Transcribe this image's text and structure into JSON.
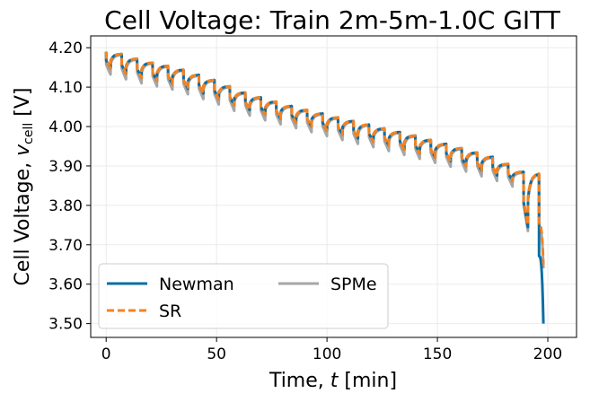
{
  "chart_data": {
    "type": "line",
    "title": "Cell Voltage: Train 2m-5m-1.0C GITT",
    "xlabel_prefix": "Time, ",
    "xlabel_var": "t",
    "xlabel_unit": " [min]",
    "ylabel_prefix": "Cell Voltage, ",
    "ylabel_var": "v",
    "ylabel_sub": "cell",
    "ylabel_unit": " [V]",
    "xlim": [
      -7,
      213
    ],
    "ylim": [
      3.465,
      4.23
    ],
    "xticks": [
      0,
      50,
      100,
      150,
      200
    ],
    "yticks": [
      3.5,
      3.6,
      3.7,
      3.8,
      3.9,
      4.0,
      4.1,
      4.2
    ],
    "ytick_labels": [
      "3.50",
      "3.60",
      "3.70",
      "3.80",
      "3.90",
      "4.00",
      "4.10",
      "4.20"
    ],
    "grid": true,
    "legend_placement": "lower-left",
    "legend_columns": 2,
    "pulse_period_min": 7,
    "pulse_duration_min": 2,
    "rest_curve_shape": "exponential relaxation to OCV",
    "series": [
      {
        "name": "Newman",
        "color": "#0b6ea3",
        "style": "solid",
        "ocv_before_pulse": [
          4.19,
          4.184,
          4.172,
          4.162,
          4.154,
          4.144,
          4.131,
          4.118,
          4.102,
          4.086,
          4.074,
          4.063,
          4.052,
          4.042,
          4.033,
          4.023,
          4.014,
          4.005,
          3.995,
          3.986,
          3.977,
          3.966,
          3.956,
          3.945,
          3.934,
          3.923,
          3.905,
          3.885,
          3.88
        ],
        "pulse_end_voltage": [
          4.148,
          4.134,
          4.124,
          4.116,
          4.108,
          4.096,
          4.084,
          4.07,
          4.054,
          4.042,
          4.03,
          4.02,
          4.01,
          4.0,
          3.99,
          3.98,
          3.97,
          3.962,
          3.952,
          3.942,
          3.932,
          3.922,
          3.912,
          3.9,
          3.888,
          3.876,
          3.862,
          3.745,
          3.5
        ]
      },
      {
        "name": "SR",
        "color": "#f5821f",
        "style": "dashed",
        "ocv_before_pulse": [
          4.19,
          4.184,
          4.172,
          4.162,
          4.154,
          4.144,
          4.131,
          4.118,
          4.102,
          4.086,
          4.074,
          4.063,
          4.052,
          4.042,
          4.033,
          4.023,
          4.014,
          4.005,
          3.995,
          3.986,
          3.977,
          3.966,
          3.956,
          3.945,
          3.934,
          3.923,
          3.905,
          3.885,
          3.88
        ],
        "pulse_end_voltage": [
          4.148,
          4.134,
          4.124,
          4.116,
          4.108,
          4.096,
          4.084,
          4.07,
          4.054,
          4.042,
          4.03,
          4.02,
          4.01,
          4.0,
          3.99,
          3.98,
          3.97,
          3.962,
          3.952,
          3.942,
          3.932,
          3.922,
          3.912,
          3.9,
          3.888,
          3.876,
          3.862,
          3.75,
          3.65
        ]
      },
      {
        "name": "SPMe",
        "color": "#a6a6a6",
        "style": "solid",
        "ocv_before_pulse": [
          4.188,
          4.182,
          4.17,
          4.16,
          4.152,
          4.142,
          4.129,
          4.116,
          4.1,
          4.084,
          4.072,
          4.061,
          4.05,
          4.04,
          4.031,
          4.021,
          4.012,
          4.003,
          3.993,
          3.984,
          3.975,
          3.964,
          3.954,
          3.943,
          3.932,
          3.921,
          3.903,
          3.883,
          3.878
        ],
        "pulse_end_voltage": [
          4.132,
          4.12,
          4.11,
          4.102,
          4.094,
          4.082,
          4.07,
          4.056,
          4.04,
          4.028,
          4.016,
          4.006,
          3.996,
          3.986,
          3.976,
          3.966,
          3.956,
          3.948,
          3.938,
          3.928,
          3.918,
          3.908,
          3.898,
          3.886,
          3.874,
          3.862,
          3.848,
          3.735,
          3.64
        ]
      }
    ]
  }
}
